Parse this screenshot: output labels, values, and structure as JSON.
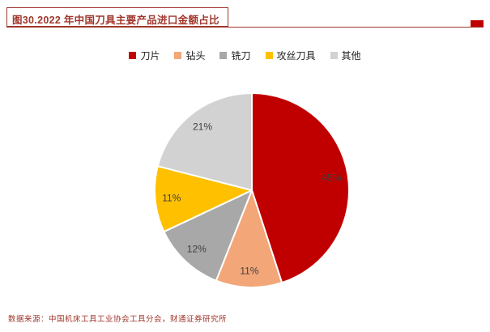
{
  "header": {
    "title": "图30.2022 年中国刀具主要产品进口金额占比"
  },
  "footer": {
    "source": "数据来源：中国机床工具工业协会工具分会，财通证券研究所"
  },
  "colors": {
    "accent_red": "#c00000",
    "title_red": "#a0362c"
  },
  "chart_data": {
    "type": "pie",
    "title": "2022 年中国刀具主要产品进口金额占比",
    "categories": [
      "刀片",
      "钻头",
      "铣刀",
      "攻丝刀具",
      "其他"
    ],
    "values": [
      45,
      11,
      12,
      11,
      21
    ],
    "labels": [
      "45%",
      "11%",
      "12%",
      "11%",
      "21%"
    ],
    "unit": "%",
    "slice_colors": [
      "#c00000",
      "#f3a678",
      "#a8a8a8",
      "#ffc000",
      "#d2d2d2"
    ],
    "start_angle_deg": 0,
    "direction": "clockwise",
    "legend_position": "top",
    "slice_border_color": "#ffffff"
  }
}
